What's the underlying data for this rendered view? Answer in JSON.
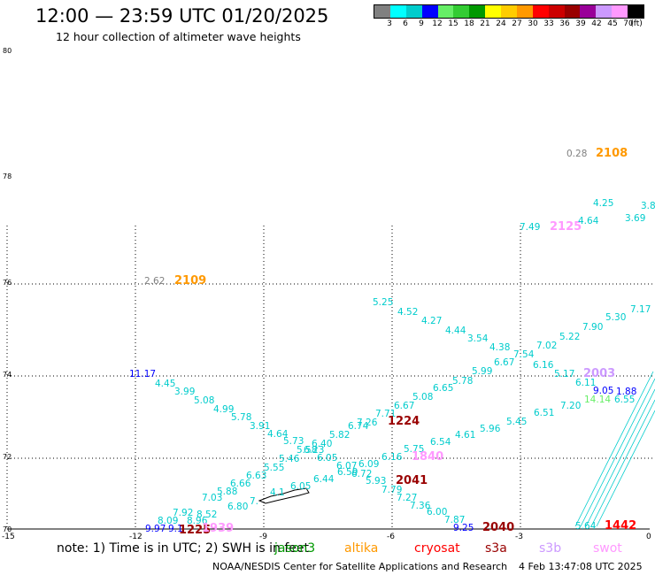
{
  "title": "12:00 — 23:59 UTC 01/20/2025",
  "subtitle": "12 hour collection of altimeter wave heights",
  "scale": {
    "colors": [
      "#808080",
      "#00ffff",
      "#00cccc",
      "#0000ff",
      "#66ee66",
      "#33cc33",
      "#009900",
      "#ffff00",
      "#ffcc00",
      "#ff9900",
      "#ff0000",
      "#cc0000",
      "#990000",
      "#990099",
      "#cc99ff",
      "#ff99ff",
      "#000000"
    ],
    "labels": [
      "3",
      "6",
      "9",
      "12",
      "15",
      "18",
      "21",
      "24",
      "27",
      "30",
      "33",
      "36",
      "39",
      "42",
      "45",
      "70",
      "(ft)"
    ]
  },
  "axes": {
    "lat_ticks": [
      "80",
      "78",
      "76",
      "74",
      "72",
      "70"
    ],
    "lon_ticks": [
      "-15",
      "-12",
      "-9",
      "-6",
      "-3",
      "0"
    ]
  },
  "note": "note:  1) Time is in UTC;  2) SWH is in feet",
  "legend": [
    {
      "label": "jason3",
      "color": "#009900"
    },
    {
      "label": "altika",
      "color": "#ff9900"
    },
    {
      "label": "cryosat",
      "color": "#ff0000"
    },
    {
      "label": "s3a",
      "color": "#990000"
    },
    {
      "label": "s3b",
      "color": "#cc99ff"
    },
    {
      "label": "swot",
      "color": "#ff99ff"
    }
  ],
  "footer_center": "NOAA/NESDIS Center for Satellite Applications and Research",
  "footer_right": "4 Feb 13:47:08 UTC 2025",
  "map_labels": [
    {
      "t": "0.28",
      "c": "#808080"
    },
    {
      "t": "2108",
      "c": "#ff9900",
      "b": true
    },
    {
      "t": "4.25",
      "c": "#00cccc"
    },
    {
      "t": "3.8",
      "c": "#00cccc"
    },
    {
      "t": "7.49",
      "c": "#00cccc"
    },
    {
      "t": "2125",
      "c": "#ff99ff",
      "b": true
    },
    {
      "t": "4.64",
      "c": "#00cccc"
    },
    {
      "t": "3.69",
      "c": "#00cccc"
    },
    {
      "t": "2.62",
      "c": "#808080"
    },
    {
      "t": "2109",
      "c": "#ff9900",
      "b": true
    },
    {
      "t": "5.25",
      "c": "#00cccc"
    },
    {
      "t": "4.52",
      "c": "#00cccc"
    },
    {
      "t": "4.27",
      "c": "#00cccc"
    },
    {
      "t": "4.44",
      "c": "#00cccc"
    },
    {
      "t": "3.54",
      "c": "#00cccc"
    },
    {
      "t": "4.38",
      "c": "#00cccc"
    },
    {
      "t": "7.02",
      "c": "#00cccc"
    },
    {
      "t": "5.22",
      "c": "#00cccc"
    },
    {
      "t": "7.90",
      "c": "#00cccc"
    },
    {
      "t": "5.30",
      "c": "#00cccc"
    },
    {
      "t": "7.17",
      "c": "#00cccc"
    },
    {
      "t": "7.54",
      "c": "#00cccc"
    },
    {
      "t": "6.67",
      "c": "#00cccc"
    },
    {
      "t": "6.16",
      "c": "#00cccc"
    },
    {
      "t": "5.17",
      "c": "#00cccc"
    },
    {
      "t": "2003",
      "c": "#cc99ff",
      "b": true
    },
    {
      "t": "11.17",
      "c": "#0000ff"
    },
    {
      "t": "4.45",
      "c": "#00cccc"
    },
    {
      "t": "3.99",
      "c": "#00cccc"
    },
    {
      "t": "5.99",
      "c": "#00cccc"
    },
    {
      "t": "5.78",
      "c": "#00cccc"
    },
    {
      "t": "6.11",
      "c": "#00cccc"
    },
    {
      "t": "9.05",
      "c": "#0000ff"
    },
    {
      "t": "1.88",
      "c": "#0000ff"
    },
    {
      "t": "5.08",
      "c": "#00cccc"
    },
    {
      "t": "6.65",
      "c": "#00cccc"
    },
    {
      "t": "14.14",
      "c": "#66ee66"
    },
    {
      "t": "6.55",
      "c": "#00cccc"
    },
    {
      "t": "4.99",
      "c": "#00cccc"
    },
    {
      "t": "5.08",
      "c": "#00cccc"
    },
    {
      "t": "6.67",
      "c": "#00cccc"
    },
    {
      "t": "7.20",
      "c": "#00cccc"
    },
    {
      "t": "5.78",
      "c": "#00cccc"
    },
    {
      "t": "7.71",
      "c": "#00cccc"
    },
    {
      "t": "6.51",
      "c": "#00cccc"
    },
    {
      "t": "7.26",
      "c": "#00cccc"
    },
    {
      "t": "1224",
      "c": "#990000",
      "b": true
    },
    {
      "t": "5.45",
      "c": "#00cccc"
    },
    {
      "t": "3.91",
      "c": "#00cccc"
    },
    {
      "t": "6.74",
      "c": "#00cccc"
    },
    {
      "t": "5.96",
      "c": "#00cccc"
    },
    {
      "t": "4.64",
      "c": "#00cccc"
    },
    {
      "t": "5.82",
      "c": "#00cccc"
    },
    {
      "t": "4.61",
      "c": "#00cccc"
    },
    {
      "t": "5.73",
      "c": "#00cccc"
    },
    {
      "t": "6.40",
      "c": "#00cccc"
    },
    {
      "t": "6.54",
      "c": "#00cccc"
    },
    {
      "t": "5.58",
      "c": "#00cccc"
    },
    {
      "t": "6.23",
      "c": "#00cccc"
    },
    {
      "t": "5.75",
      "c": "#00cccc"
    },
    {
      "t": "5.46",
      "c": "#00cccc"
    },
    {
      "t": "6.05",
      "c": "#00cccc"
    },
    {
      "t": "6.16",
      "c": "#00cccc"
    },
    {
      "t": "1840",
      "c": "#ff99ff",
      "b": true
    },
    {
      "t": "5.55",
      "c": "#00cccc"
    },
    {
      "t": "6.07",
      "c": "#00cccc"
    },
    {
      "t": "6.09",
      "c": "#00cccc"
    },
    {
      "t": "6.63",
      "c": "#00cccc"
    },
    {
      "t": "6.59",
      "c": "#00cccc"
    },
    {
      "t": "6.72",
      "c": "#00cccc"
    },
    {
      "t": "6.44",
      "c": "#00cccc"
    },
    {
      "t": "5.93",
      "c": "#00cccc"
    },
    {
      "t": "2041",
      "c": "#990000",
      "b": true
    },
    {
      "t": "6.66",
      "c": "#00cccc"
    },
    {
      "t": "6.05",
      "c": "#00cccc"
    },
    {
      "t": "7.79",
      "c": "#00cccc"
    },
    {
      "t": "5.88",
      "c": "#00cccc"
    },
    {
      "t": "4.1",
      "c": "#00cccc"
    },
    {
      "t": "7.27",
      "c": "#00cccc"
    },
    {
      "t": "7.03",
      "c": "#00cccc"
    },
    {
      "t": "7.",
      "c": "#00cccc"
    },
    {
      "t": "6.80",
      "c": "#00cccc"
    },
    {
      "t": "7.36",
      "c": "#00cccc"
    },
    {
      "t": "7.92",
      "c": "#00cccc"
    },
    {
      "t": "8.52",
      "c": "#00cccc"
    },
    {
      "t": "6.00",
      "c": "#00cccc"
    },
    {
      "t": "8.09",
      "c": "#00cccc"
    },
    {
      "t": "8.96",
      "c": "#00cccc"
    },
    {
      "t": "7.87",
      "c": "#00cccc"
    },
    {
      "t": "1442",
      "c": "#ff0000",
      "b": true
    },
    {
      "t": "9.97",
      "c": "#0000ff"
    },
    {
      "t": "9.1",
      "c": "#0000ff"
    },
    {
      "t": "1225",
      "c": "#990000",
      "b": true
    },
    {
      "t": "1939",
      "c": "#ff99ff",
      "b": true
    },
    {
      "t": "9.25",
      "c": "#0000ff"
    },
    {
      "t": "2040",
      "c": "#990000",
      "b": true
    },
    {
      "t": "5.64",
      "c": "#00cccc"
    }
  ]
}
